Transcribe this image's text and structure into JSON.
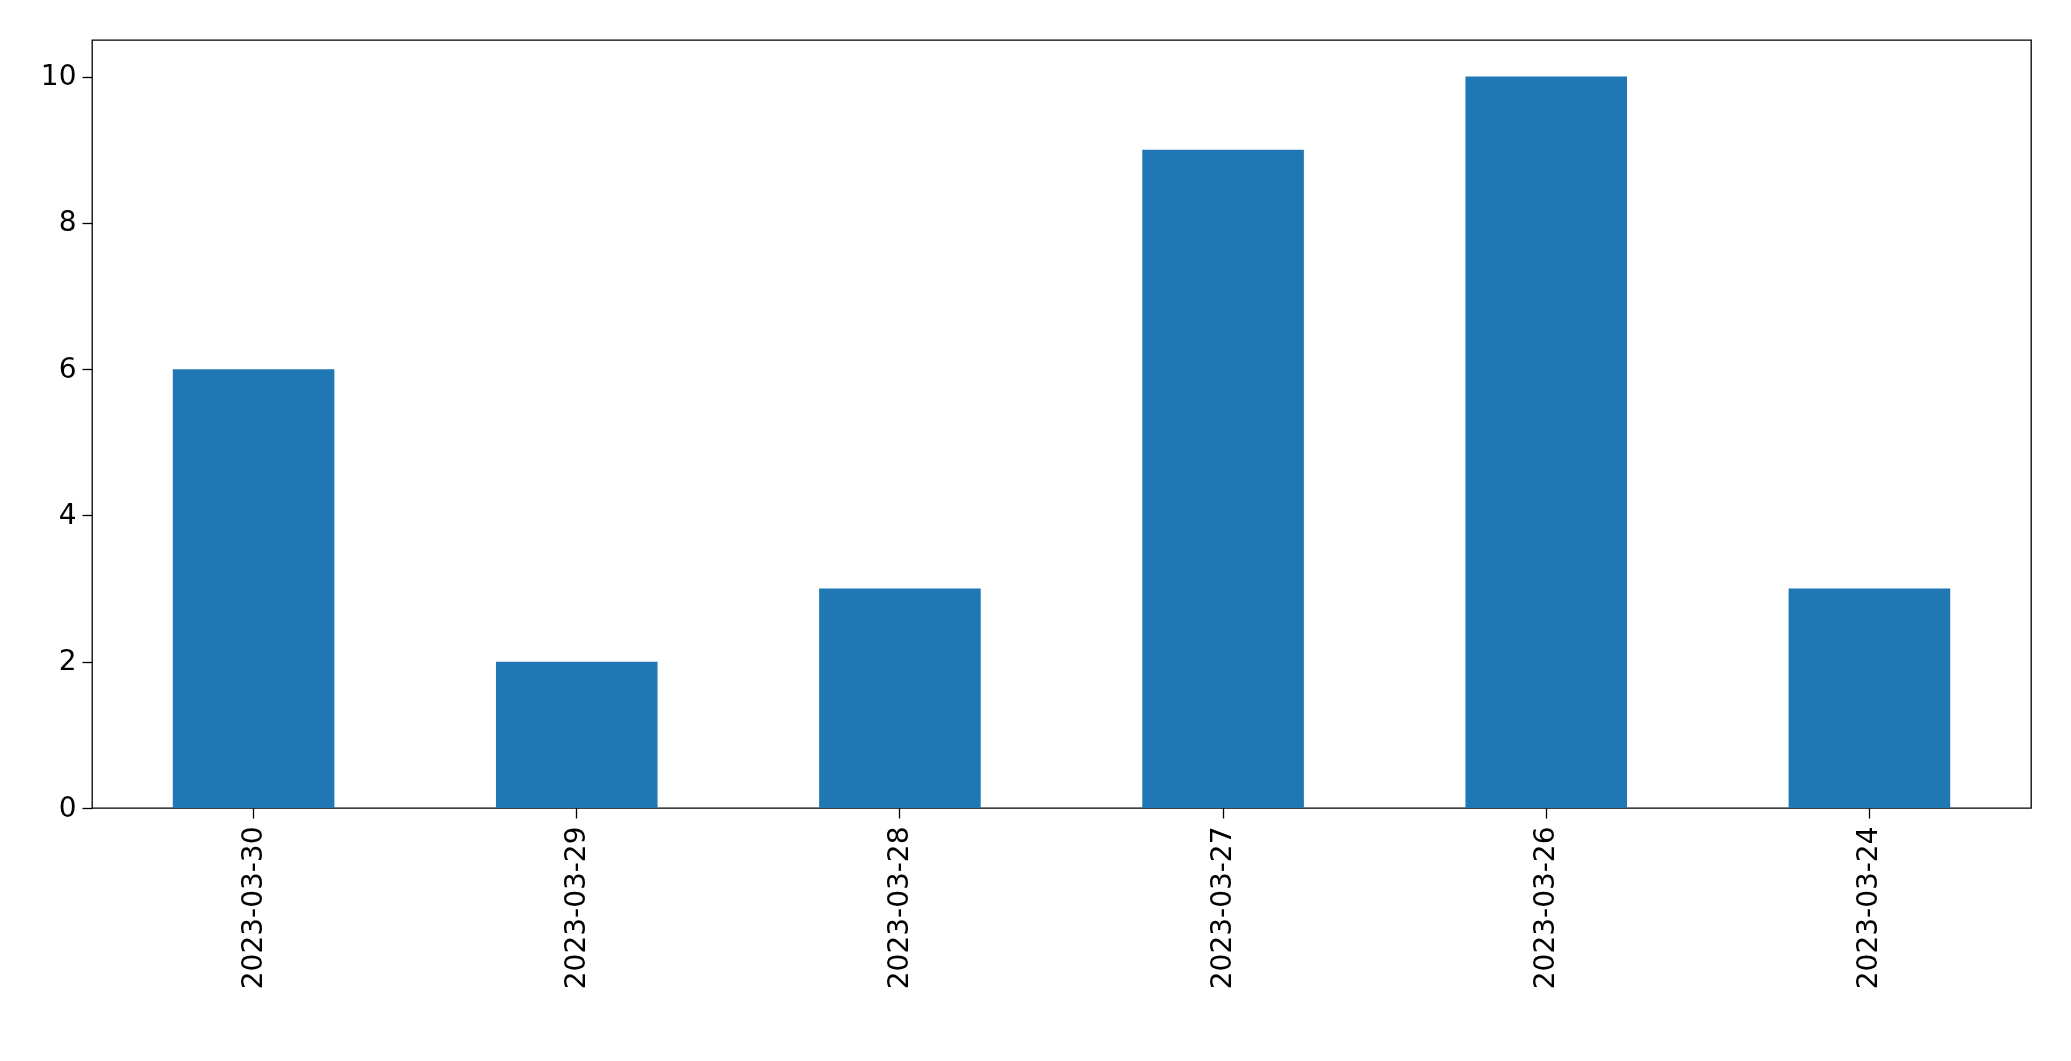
{
  "chart_data": {
    "type": "bar",
    "categories": [
      "2023-03-30",
      "2023-03-29",
      "2023-03-28",
      "2023-03-27",
      "2023-03-26",
      "2023-03-24"
    ],
    "values": [
      6,
      2,
      3,
      9,
      10,
      3
    ],
    "color": "#1f77b4",
    "ylim": [
      0,
      10.5
    ],
    "yticks": [
      0,
      2,
      4,
      6,
      8,
      10
    ],
    "grid": false,
    "legend": false
  }
}
